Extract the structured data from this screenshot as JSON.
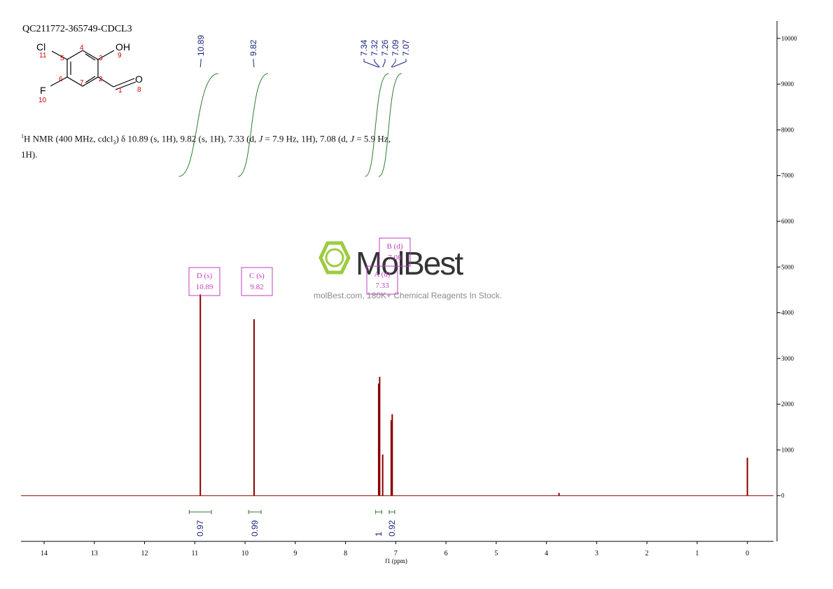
{
  "chart_data": {
    "type": "spectrum",
    "title": "QC211772-365749-CDCL3",
    "x_label": "f1 (ppm)",
    "xlim": [
      14.46,
      -0.52
    ],
    "xticks": [
      14,
      13,
      12,
      11,
      10,
      9,
      8,
      7,
      6,
      5,
      4,
      3,
      2,
      1,
      0
    ],
    "ylim": [
      -1000,
      10380
    ],
    "yticks": [
      0,
      1000,
      2000,
      3000,
      4000,
      5000,
      6000,
      7000,
      8000,
      9000,
      10000
    ],
    "color": "#8b0000",
    "peaks": {
      "x": [
        10.89,
        9.82,
        7.34,
        7.32,
        7.26,
        7.09,
        7.07,
        3.75,
        0
      ],
      "values": [
        4400,
        3860,
        2450,
        2600,
        900,
        1650,
        1780,
        60,
        830
      ]
    },
    "peak_labels": [
      10.89,
      9.82,
      7.34,
      7.32,
      7.26,
      7.09,
      7.07
    ],
    "integrals": [
      {
        "value": 0.97,
        "range": [
          11.11,
          10.67
        ]
      },
      {
        "value": 0.99,
        "range": [
          9.93,
          9.68
        ]
      },
      {
        "value": 1.0,
        "range": [
          7.4,
          7.28
        ]
      },
      {
        "value": 0.92,
        "range": [
          7.13,
          7.02
        ]
      }
    ],
    "multiplets": [
      {
        "label": "D (s)",
        "shift": 10.89
      },
      {
        "label": "C (s)",
        "shift": 9.82
      },
      {
        "label": "A (d)",
        "shift": 7.33
      },
      {
        "label": "B (d)",
        "shift": 7.08
      }
    ]
  },
  "nmr_text": {
    "sup": "1",
    "a": "H NMR (400 MHz, cdcl",
    "sub": "3",
    "b": ") δ 10.89 (s, 1H), 9.82 (s, 1H), 7.33 (d, ",
    "j1": "J",
    "c": " = 7.9 Hz, 1H), 7.08 (d, ",
    "j2": "J",
    "d": " = 5.9 Hz, 1H)."
  },
  "structure": {
    "atoms": [
      "Cl",
      "OH",
      "F",
      "O"
    ],
    "numbers": [
      "11",
      "5",
      "4",
      "3",
      "9",
      "6",
      "2",
      "10",
      "7",
      "1",
      "8"
    ]
  },
  "watermark": {
    "brand": "MolBest",
    "tagline": "molBest.com, 180K+ Chemical Reagents In Stock."
  }
}
